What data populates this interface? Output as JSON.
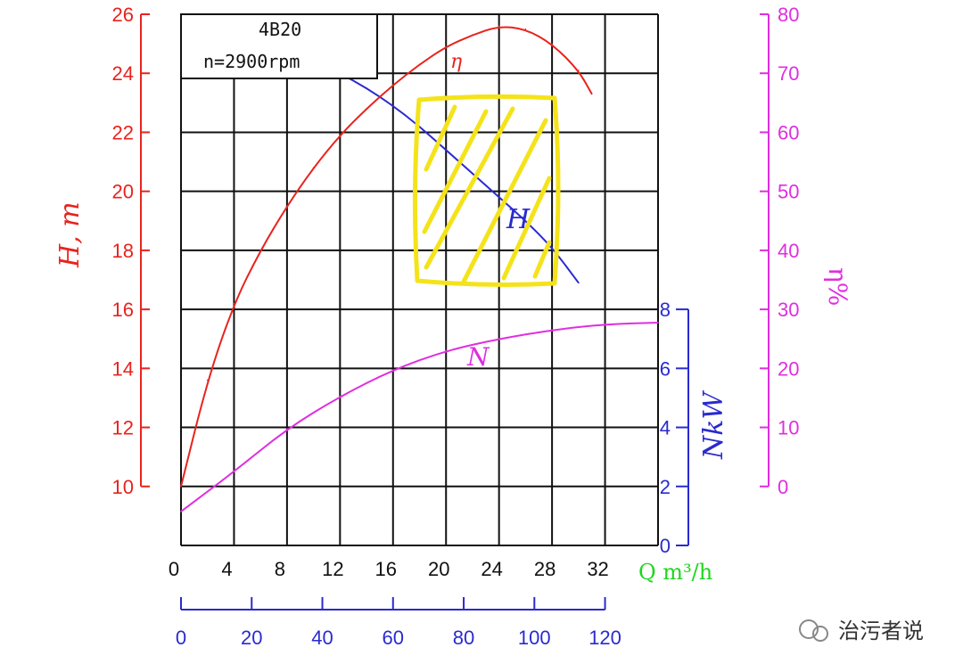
{
  "chart_data": {
    "type": "line",
    "title": "4B20",
    "subtitle": "n=2900rpm",
    "xlabel": "Q m³/h",
    "x_ticks": [
      "0",
      "4",
      "8",
      "12",
      "16",
      "20",
      "24",
      "28",
      "32"
    ],
    "x_range": [
      0,
      36
    ],
    "secondary_x": {
      "ticks": [
        "0",
        "20",
        "40",
        "60",
        "80",
        "100",
        "120"
      ],
      "color": "#2a2ad0"
    },
    "y_left": {
      "label": "H, m",
      "ticks": [
        "10",
        "12",
        "14",
        "16",
        "18",
        "20",
        "22",
        "24",
        "26"
      ],
      "range": [
        8,
        26
      ],
      "color": "#e8231d"
    },
    "y_right_outer": {
      "label": "η%",
      "ticks": [
        "0",
        "10",
        "20",
        "30",
        "40",
        "50",
        "60",
        "70",
        "80"
      ],
      "range": [
        0,
        80
      ],
      "color": "#e02ee0"
    },
    "y_right_inner": {
      "label": "NkW",
      "ticks": [
        "0",
        "2",
        "4",
        "6",
        "8"
      ],
      "range": [
        0,
        8
      ],
      "color": "#2a2ad0"
    },
    "grid": true,
    "series": [
      {
        "name": "H",
        "axis": "y_left",
        "color": "#2a2ad0",
        "x": [
          0,
          2,
          4,
          6,
          8,
          10,
          12,
          14,
          16,
          18,
          20,
          22,
          24,
          26,
          28,
          30
        ],
        "y": [
          24.7,
          24.8,
          24.9,
          24.8,
          24.6,
          24.3,
          24.0,
          23.5,
          22.9,
          22.2,
          21.4,
          20.6,
          19.8,
          19.0,
          18.1,
          16.9
        ]
      },
      {
        "name": "η",
        "axis": "y_right_outer",
        "color": "#e8231d",
        "x": [
          0,
          2,
          4,
          6,
          8,
          10,
          12,
          14,
          16,
          18,
          20,
          22,
          24,
          26,
          28,
          30,
          31
        ],
        "y": [
          0,
          18,
          31,
          40,
          47.5,
          54,
          59.5,
          64,
          68,
          71.5,
          74.5,
          76.5,
          78,
          77.5,
          75,
          70.5,
          66.5
        ]
      },
      {
        "name": "N",
        "axis": "y_right_inner",
        "color": "#e02ee0",
        "x": [
          0,
          4,
          8,
          12,
          16,
          20,
          24,
          28,
          32,
          36
        ],
        "y": [
          1.15,
          2.5,
          3.95,
          5.05,
          5.95,
          6.6,
          7.0,
          7.3,
          7.5,
          7.55
        ]
      }
    ],
    "annotations": {
      "curve_label_H": "H",
      "curve_label_eta": "η",
      "curve_label_N": "N"
    }
  },
  "watermark": "治污者说",
  "highlight_color": "#f4e31a"
}
